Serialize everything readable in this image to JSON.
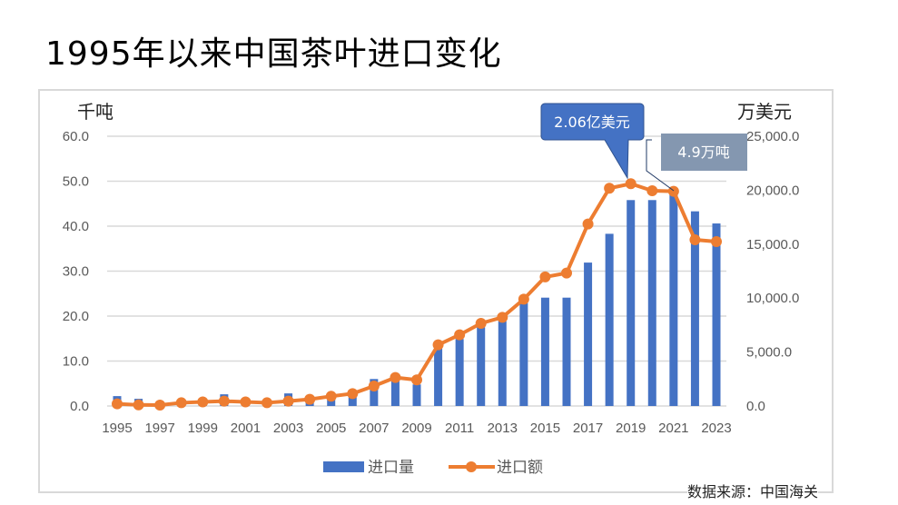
{
  "title": "1995年以来中国茶叶进口变化",
  "source": "数据来源：中国海关",
  "chart_data": {
    "type": "bar+line",
    "title": "1995年以来中国茶叶进口变化",
    "left_axis": {
      "unit": "千吨",
      "ylim": [
        0,
        60
      ],
      "ticks": [
        "0.0",
        "10.0",
        "20.0",
        "30.0",
        "40.0",
        "50.0",
        "60.0"
      ]
    },
    "right_axis": {
      "unit": "万美元",
      "ylim": [
        0,
        25000
      ],
      "ticks": [
        "0.0",
        "5,000.0",
        "10,000.0",
        "15,000.0",
        "20,000.0",
        "25,000.0"
      ]
    },
    "x": [
      1995,
      1996,
      1997,
      1998,
      1999,
      2000,
      2001,
      2002,
      2003,
      2004,
      2005,
      2006,
      2007,
      2008,
      2009,
      2010,
      2011,
      2012,
      2013,
      2014,
      2015,
      2016,
      2017,
      2018,
      2019,
      2020,
      2021,
      2022,
      2023
    ],
    "x_tick_labels": [
      "1995",
      "1997",
      "1999",
      "2001",
      "2003",
      "2005",
      "2007",
      "2009",
      "2011",
      "2013",
      "2015",
      "2017",
      "2019",
      "2021",
      "2023"
    ],
    "grid": true,
    "legend": "bottom",
    "series": [
      {
        "name": "进口量",
        "type": "bar",
        "axis": "left",
        "color": "#4472c4",
        "values": [
          2.2,
          1.6,
          0.3,
          0.5,
          0.8,
          2.6,
          0.8,
          0.6,
          2.8,
          1.2,
          1.5,
          2.0,
          6.0,
          6.0,
          4.8,
          13.5,
          14.9,
          17.5,
          18.9,
          22.9,
          24.1,
          24.1,
          31.9,
          38.3,
          45.8,
          45.8,
          48.5,
          43.3,
          40.6
        ]
      },
      {
        "name": "进口额",
        "type": "line",
        "axis": "right",
        "color": "#ed7d31",
        "values": [
          200,
          100,
          80,
          300,
          380,
          450,
          380,
          300,
          450,
          620,
          900,
          1150,
          1850,
          2640,
          2420,
          5670,
          6600,
          7660,
          8220,
          9900,
          11960,
          12320,
          16870,
          20180,
          20600,
          19950,
          19900,
          15400,
          15240
        ]
      }
    ],
    "annotations": [
      {
        "text": "2.06亿美元",
        "x": 2019,
        "color": "#4472c4"
      },
      {
        "text": "4.9万吨",
        "x": 2021,
        "color": "#8497b0"
      }
    ]
  }
}
